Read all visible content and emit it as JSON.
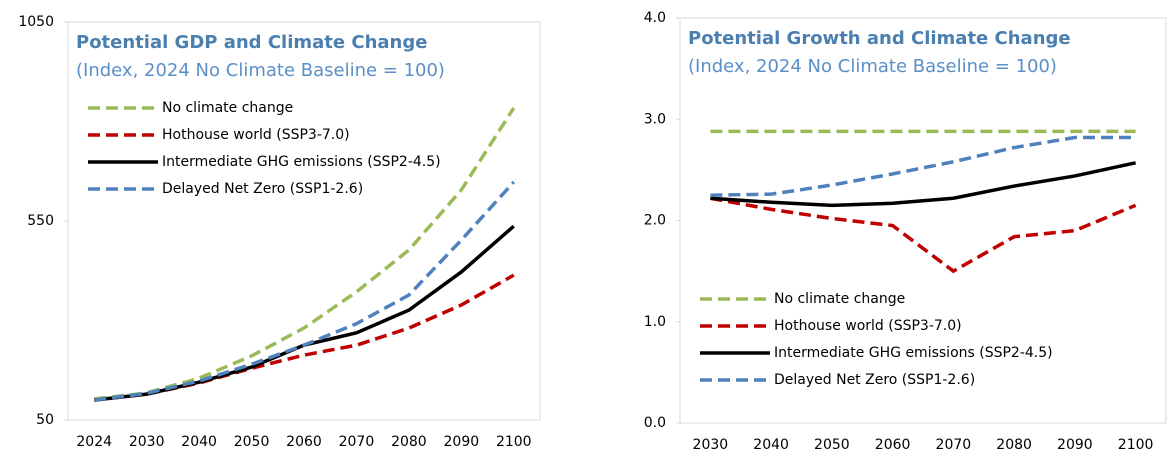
{
  "chart_data": [
    {
      "type": "line",
      "title": "Potential GDP and Climate Change",
      "subtitle": "(Index, 2024 No Climate Baseline = 100)",
      "categories": [
        "2024",
        "2030",
        "2040",
        "2050",
        "2060",
        "2070",
        "2080",
        "2090",
        "2100"
      ],
      "ylim": [
        50,
        1050
      ],
      "yticks": [
        50,
        550,
        1050
      ],
      "legend": "upper left",
      "series": [
        {
          "name": "No climate change",
          "color": "#9bbb59",
          "dash": true,
          "values": [
            103,
            118,
            155,
            211,
            281,
            372,
            477,
            628,
            834
          ]
        },
        {
          "name": "Hothouse world (SSP3-7.0)",
          "color": "#c00000",
          "dash": true,
          "values": [
            100,
            115,
            143,
            180,
            213,
            238,
            281,
            339,
            414
          ]
        },
        {
          "name": "Intermediate GHG emissions (SSP2-4.5)",
          "color": "#000000",
          "dash": false,
          "values": [
            100,
            115,
            145,
            183,
            238,
            269,
            326,
            422,
            537
          ]
        },
        {
          "name": "Delayed Net Zero (SSP1-2.6)",
          "color": "#4f81bd",
          "dash": true,
          "values": [
            100,
            117,
            148,
            190,
            238,
            292,
            364,
            502,
            648
          ]
        }
      ]
    },
    {
      "type": "line",
      "title": "Potential Growth and Climate Change",
      "subtitle": "(Index, 2024 No Climate Baseline = 100)",
      "categories": [
        "2030",
        "2040",
        "2050",
        "2060",
        "2070",
        "2080",
        "2090",
        "2100"
      ],
      "ylim": [
        0,
        4
      ],
      "yticks": [
        {
          "value": 0,
          "label": "0.0"
        },
        {
          "value": 1,
          "label": "1.0"
        },
        {
          "value": 2,
          "label": "2.0"
        },
        {
          "value": 3,
          "label": "3.0"
        },
        {
          "value": 4,
          "label": "4.0"
        }
      ],
      "legend": "lower left",
      "series": [
        {
          "name": "No climate change",
          "color": "#9bbb59",
          "dash": true,
          "values": [
            2.88,
            2.88,
            2.88,
            2.88,
            2.88,
            2.88,
            2.88,
            2.88
          ]
        },
        {
          "name": "Hothouse world (SSP3-7.0)",
          "color": "#c00000",
          "dash": true,
          "values": [
            2.22,
            2.11,
            2.02,
            1.95,
            1.5,
            1.84,
            1.9,
            2.15
          ]
        },
        {
          "name": "Intermediate GHG emissions (SSP2-4.5)",
          "color": "#000000",
          "dash": false,
          "values": [
            2.22,
            2.18,
            2.15,
            2.17,
            2.22,
            2.34,
            2.44,
            2.57
          ]
        },
        {
          "name": "Delayed Net Zero (SSP1-2.6)",
          "color": "#4f81bd",
          "dash": true,
          "values": [
            2.25,
            2.26,
            2.35,
            2.46,
            2.58,
            2.72,
            2.82,
            2.82
          ]
        }
      ]
    }
  ]
}
